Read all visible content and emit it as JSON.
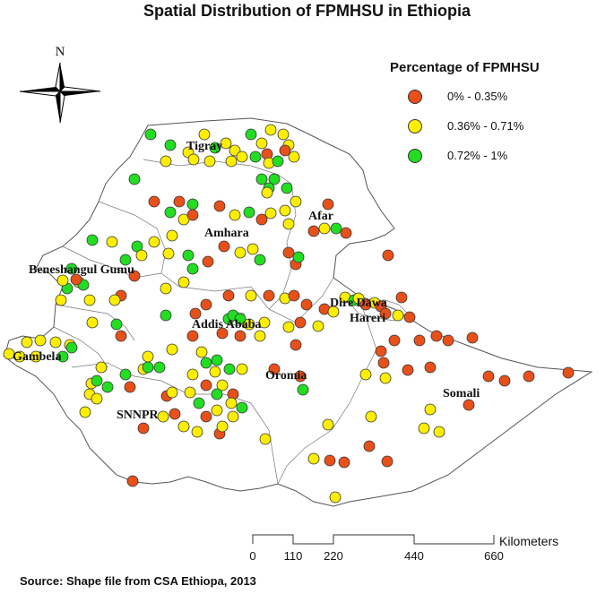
{
  "title": "Spatial Distribution of FPMHSU in Ethiopia",
  "north_arrow": {
    "label": "N",
    "icon": "north-arrow-icon"
  },
  "legend": {
    "title": "Percentage of FPMHSU",
    "items": [
      {
        "label": "0% - 0.35%",
        "color": "#e8501a"
      },
      {
        "label": "0.36% - 0.71%",
        "color": "#ffee00"
      },
      {
        "label": "0.72% - 1%",
        "color": "#22dd22"
      }
    ]
  },
  "regions": [
    "Tigray",
    "Afar",
    "Amhara",
    "Beneshangul Gumu",
    "Dire Dawa",
    "Hareri",
    "Addis Ababa",
    "Gambela",
    "Oromia",
    "Somali",
    "SNNPR"
  ],
  "scale_bar": {
    "unit": "Kilometers",
    "ticks": [
      "0",
      "110",
      "220",
      "440",
      "660"
    ]
  },
  "source": "Source: Shape file from CSA Ethiopa, 2013"
}
